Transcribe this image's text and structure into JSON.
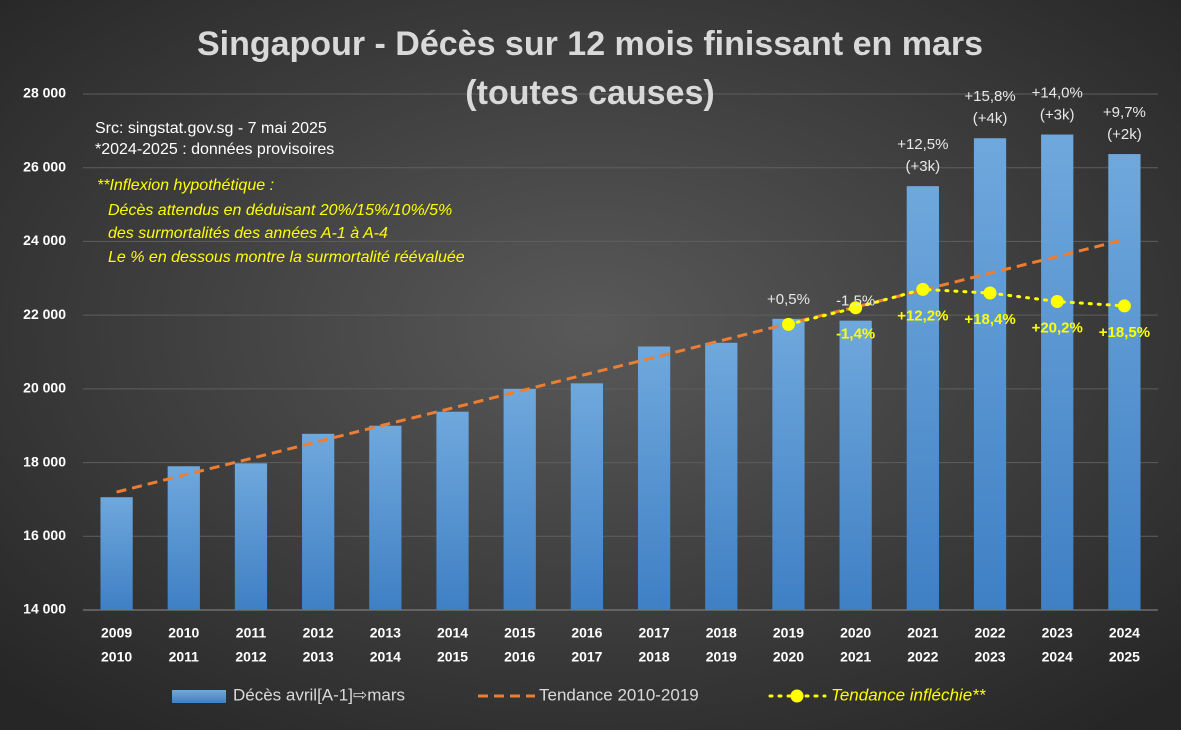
{
  "chart_data": {
    "type": "combo",
    "title": [
      "Singapour - Décès sur 12 mois finissant en mars",
      "(toutes causes)"
    ],
    "source_lines": [
      "Src: singstat.gov.sg - 7 mai 2025",
      "*2024-2025 : données provisoires"
    ],
    "inflexion_note": [
      "**Inflexion hypothétique :",
      "Décès attendus en déduisant 20%/15%/10%/5%",
      "des surmortalités des années A-1 à A-4",
      "Le % en dessous montre la surmortalité réévaluée"
    ],
    "categories": [
      [
        "2009",
        "2010"
      ],
      [
        "2010",
        "2011"
      ],
      [
        "2011",
        "2012"
      ],
      [
        "2012",
        "2013"
      ],
      [
        "2013",
        "2014"
      ],
      [
        "2014",
        "2015"
      ],
      [
        "2015",
        "2016"
      ],
      [
        "2016",
        "2017"
      ],
      [
        "2017",
        "2018"
      ],
      [
        "2018",
        "2019"
      ],
      [
        "2019",
        "2020"
      ],
      [
        "2020",
        "2021"
      ],
      [
        "2021",
        "2022"
      ],
      [
        "2022",
        "2023"
      ],
      [
        "2023",
        "2024"
      ],
      [
        "2024",
        "2025"
      ]
    ],
    "series": [
      {
        "name": "Décès avril[A-1]⇨mars",
        "type": "bar",
        "color": "#5b9bd5",
        "values": [
          17060,
          17900,
          17980,
          18780,
          19000,
          19380,
          20000,
          20150,
          21150,
          21250,
          21900,
          21850,
          25500,
          26800,
          26900,
          26370
        ],
        "value_labels": [
          null,
          null,
          null,
          null,
          null,
          null,
          null,
          null,
          null,
          null,
          [
            "+0,5%"
          ],
          [
            "-1,5%"
          ],
          [
            "+12,5%",
            "(+3k)"
          ],
          [
            "+15,8%",
            "(+4k)"
          ],
          [
            "+14,0%",
            "(+3k)"
          ],
          [
            "+9,7%",
            "(+2k)"
          ]
        ]
      },
      {
        "name": "Tendance 2010-2019",
        "type": "dashed-line",
        "color": "#ed7d31",
        "values": [
          17200,
          17660,
          18110,
          18570,
          19030,
          19480,
          19940,
          20400,
          20850,
          21310,
          21770,
          22220,
          22680,
          23140,
          23590,
          24050
        ]
      },
      {
        "name": "Tendance infléchie**",
        "type": "dotted-line",
        "color": "#ffff00",
        "values": [
          null,
          null,
          null,
          null,
          null,
          null,
          null,
          null,
          null,
          null,
          21750,
          22200,
          22700,
          22600,
          22370,
          22250
        ],
        "value_labels": [
          null,
          null,
          null,
          null,
          null,
          null,
          null,
          null,
          null,
          null,
          null,
          "-1,4%",
          "+12,2%",
          "+18,4%",
          "+20,2%",
          "+18,5%"
        ]
      }
    ],
    "ylim": [
      14000,
      28000
    ],
    "yticks": [
      {
        "value": 14000,
        "label": "14 000"
      },
      {
        "value": 16000,
        "label": "16 000"
      },
      {
        "value": 18000,
        "label": "18 000"
      },
      {
        "value": 20000,
        "label": "20 000"
      },
      {
        "value": 22000,
        "label": "22 000"
      },
      {
        "value": 24000,
        "label": "24 000"
      },
      {
        "value": 26000,
        "label": "26 000"
      },
      {
        "value": 28000,
        "label": "28 000"
      }
    ],
    "grid": true
  }
}
